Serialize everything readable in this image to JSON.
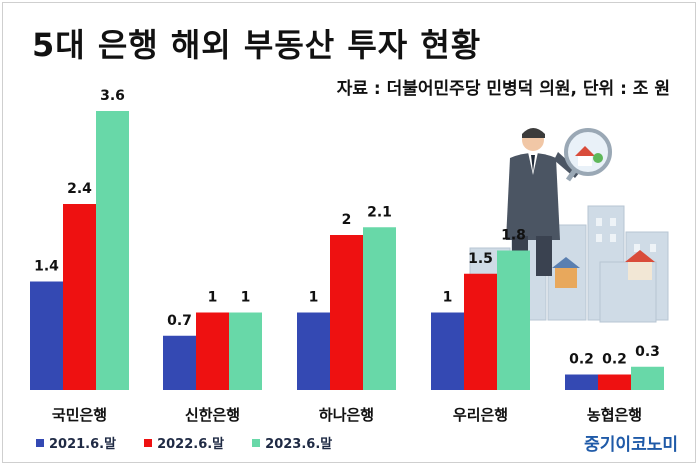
{
  "title": "5대 은행 해외 부동산 투자 현황",
  "source": "자료 : 더불어민주당 민병덕 의원, 단위 : 조 원",
  "brand": "중기이코노미",
  "colors": {
    "series1": "#3449b3",
    "series2": "#ee1111",
    "series3": "#68d8a8"
  },
  "chart_data": {
    "type": "bar",
    "categories": [
      "국민은행",
      "신한은행",
      "하나은행",
      "우리은행",
      "농협은행"
    ],
    "series": [
      {
        "name": "2021.6.말",
        "values": [
          1.4,
          0.7,
          1,
          1,
          0.2
        ]
      },
      {
        "name": "2022.6.말",
        "values": [
          2.4,
          1,
          2,
          1.5,
          0.2
        ]
      },
      {
        "name": "2023.6.말",
        "values": [
          3.6,
          1,
          2.1,
          1.8,
          0.3
        ]
      }
    ],
    "value_labels": [
      [
        "1.4",
        "0.7",
        "1",
        "1",
        "0.2"
      ],
      [
        "2.4",
        "1",
        "2",
        "1.5",
        "0.2"
      ],
      [
        "3.6",
        "1",
        "2.1",
        "1.8",
        "0.3"
      ]
    ],
    "legend_position": "bottom-left",
    "grid": false
  }
}
